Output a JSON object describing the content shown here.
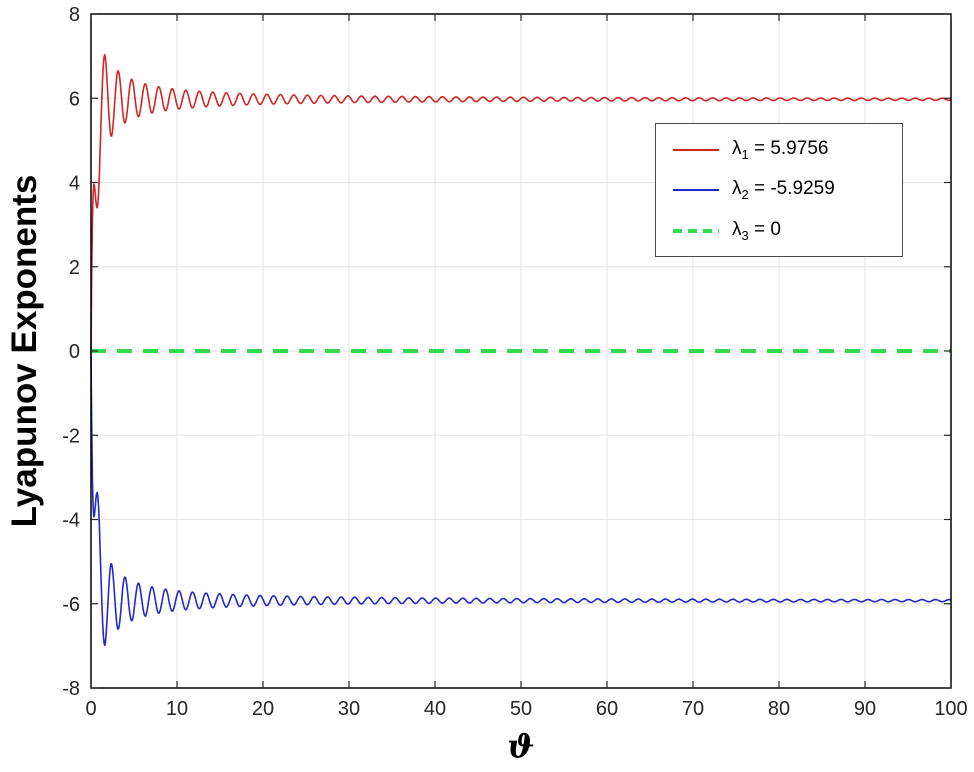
{
  "figure": {
    "background": "#ffffff",
    "grid_color": "#e3e3e3",
    "axis_color": "#000000",
    "tick_label_color": "#262626"
  },
  "chart_data": {
    "type": "line",
    "title": "",
    "xlabel": "ϑ",
    "ylabel": "Lyapunov Exponents",
    "xlim": [
      0,
      100
    ],
    "ylim": [
      -8,
      8
    ],
    "xticks": [
      0,
      10,
      20,
      30,
      40,
      50,
      60,
      70,
      80,
      90,
      100
    ],
    "yticks": [
      -8,
      -6,
      -4,
      -2,
      0,
      2,
      4,
      6,
      8
    ],
    "grid": true,
    "legend_position": "upper-right",
    "description": "Three Lyapunov exponents vs parameter theta: lambda1 rises from 0, overshoots to about 7.15 near theta=1.6, then oscillates with decaying amplitude converging to 5.9756; lambda2 is the mirror image converging to -5.9259; lambda3 is constant zero (thick green dashed).",
    "series": [
      {
        "name": "lambda1",
        "value": 5.9756,
        "color": "#cf2626",
        "line": "solid",
        "width": 1.6,
        "model": {
          "type": "damped_osc",
          "base": 5.9756,
          "rise": 2.5,
          "amp": 2.5,
          "x0": 0.5,
          "omega": 4.0,
          "phase": 1.45
        }
      },
      {
        "name": "lambda2",
        "value": -5.9259,
        "color": "#2428c8",
        "line": "solid",
        "width": 1.6,
        "model": {
          "type": "damped_osc",
          "base": -5.9259,
          "rise": 2.5,
          "amp": -2.5,
          "x0": 0.5,
          "omega": 4.0,
          "phase": 1.45
        }
      },
      {
        "name": "lambda3",
        "value": 0,
        "color": "#35d94e",
        "line": "dashed",
        "width": 4,
        "model": {
          "type": "constant",
          "base": 0
        }
      }
    ],
    "legend": {
      "items": [
        {
          "symbol": "λ",
          "sub": "1",
          "value_text": " = 5.9756"
        },
        {
          "symbol": "λ",
          "sub": "2",
          "value_text": " = -5.9259"
        },
        {
          "symbol": "λ",
          "sub": "3",
          "value_text": " = 0"
        }
      ]
    }
  }
}
